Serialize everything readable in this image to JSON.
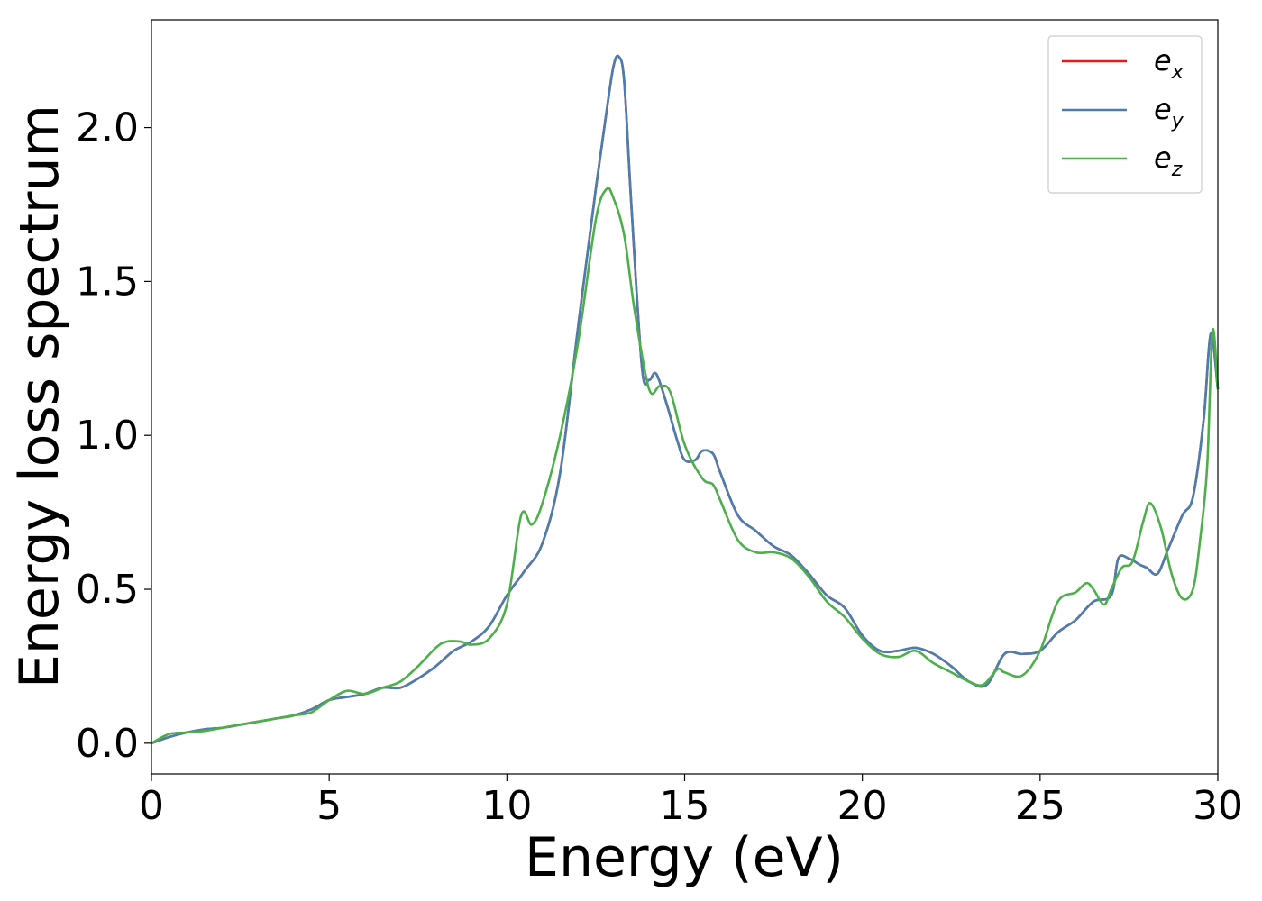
{
  "chart_data": {
    "type": "line",
    "title": "",
    "xlabel": "Energy (eV)",
    "ylabel": "Energy loss spectrum",
    "xlim": [
      0,
      30
    ],
    "ylim": [
      -0.1,
      2.35
    ],
    "xticks": [
      0,
      5,
      10,
      15,
      20,
      25,
      30
    ],
    "xtick_labels": [
      "0",
      "5",
      "10",
      "15",
      "20",
      "25",
      "30"
    ],
    "yticks": [
      0.0,
      0.5,
      1.0,
      1.5,
      2.0
    ],
    "ytick_labels": [
      "0.0",
      "0.5",
      "1.0",
      "1.5",
      "2.0"
    ],
    "grid": false,
    "legend_position": "top-right",
    "series": [
      {
        "name": "e_x",
        "label_base": "e",
        "label_sub": "x",
        "color": "#e41a1c",
        "x": [
          0,
          0.5,
          1,
          1.5,
          2,
          2.5,
          3,
          3.5,
          4,
          4.5,
          5,
          5.5,
          6,
          6.5,
          7,
          7.5,
          8,
          8.5,
          9,
          9.5,
          10,
          10.5,
          11,
          11.5,
          12,
          12.5,
          12.8,
          13,
          13.15,
          13.3,
          13.5,
          13.8,
          14,
          14.2,
          14.5,
          14.8,
          15,
          15.3,
          15.5,
          15.8,
          16,
          16.5,
          17,
          17.5,
          18,
          18.5,
          19,
          19.5,
          20,
          20.5,
          21,
          21.5,
          22,
          22.5,
          23,
          23.5,
          24,
          24.5,
          25,
          25.5,
          26,
          26.5,
          27,
          27.2,
          27.5,
          27.8,
          28,
          28.3,
          28.6,
          29,
          29.3,
          29.6,
          29.8,
          30
        ],
        "y": [
          0.0,
          0.02,
          0.035,
          0.045,
          0.05,
          0.06,
          0.07,
          0.08,
          0.09,
          0.11,
          0.14,
          0.15,
          0.16,
          0.18,
          0.18,
          0.21,
          0.25,
          0.3,
          0.33,
          0.38,
          0.48,
          0.56,
          0.65,
          0.88,
          1.35,
          1.8,
          2.05,
          2.2,
          2.23,
          2.15,
          1.75,
          1.22,
          1.18,
          1.2,
          1.1,
          0.98,
          0.92,
          0.92,
          0.95,
          0.94,
          0.88,
          0.74,
          0.69,
          0.64,
          0.61,
          0.55,
          0.48,
          0.44,
          0.35,
          0.3,
          0.3,
          0.31,
          0.29,
          0.25,
          0.2,
          0.19,
          0.29,
          0.29,
          0.3,
          0.36,
          0.4,
          0.46,
          0.48,
          0.6,
          0.6,
          0.58,
          0.57,
          0.55,
          0.63,
          0.74,
          0.8,
          1.05,
          1.33,
          1.15
        ]
      },
      {
        "name": "e_y",
        "label_base": "e",
        "label_sub": "y",
        "color": "#4a7eb0",
        "x": [
          0,
          0.5,
          1,
          1.5,
          2,
          2.5,
          3,
          3.5,
          4,
          4.5,
          5,
          5.5,
          6,
          6.5,
          7,
          7.5,
          8,
          8.5,
          9,
          9.5,
          10,
          10.5,
          11,
          11.5,
          12,
          12.5,
          12.8,
          13,
          13.15,
          13.3,
          13.5,
          13.8,
          14,
          14.2,
          14.5,
          14.8,
          15,
          15.3,
          15.5,
          15.8,
          16,
          16.5,
          17,
          17.5,
          18,
          18.5,
          19,
          19.5,
          20,
          20.5,
          21,
          21.5,
          22,
          22.5,
          23,
          23.5,
          24,
          24.5,
          25,
          25.5,
          26,
          26.5,
          27,
          27.2,
          27.5,
          27.8,
          28,
          28.3,
          28.6,
          29,
          29.3,
          29.6,
          29.8,
          30
        ],
        "y": [
          0.0,
          0.02,
          0.035,
          0.045,
          0.05,
          0.06,
          0.07,
          0.08,
          0.09,
          0.11,
          0.14,
          0.15,
          0.16,
          0.18,
          0.18,
          0.21,
          0.25,
          0.3,
          0.33,
          0.38,
          0.48,
          0.56,
          0.65,
          0.88,
          1.35,
          1.8,
          2.05,
          2.2,
          2.23,
          2.15,
          1.75,
          1.22,
          1.18,
          1.2,
          1.1,
          0.98,
          0.92,
          0.92,
          0.95,
          0.94,
          0.88,
          0.74,
          0.69,
          0.64,
          0.61,
          0.55,
          0.48,
          0.44,
          0.35,
          0.3,
          0.3,
          0.31,
          0.29,
          0.25,
          0.2,
          0.19,
          0.29,
          0.29,
          0.3,
          0.36,
          0.4,
          0.46,
          0.48,
          0.6,
          0.6,
          0.58,
          0.57,
          0.55,
          0.63,
          0.74,
          0.8,
          1.05,
          1.33,
          1.15
        ]
      },
      {
        "name": "e_z",
        "label_base": "e",
        "label_sub": "z",
        "color": "#4daf4a",
        "x": [
          0,
          0.5,
          1,
          1.5,
          2,
          2.5,
          3,
          3.5,
          4,
          4.5,
          5,
          5.5,
          6,
          6.5,
          7,
          7.5,
          8,
          8.3,
          8.7,
          9,
          9.5,
          10,
          10.4,
          10.7,
          11,
          11.5,
          12,
          12.5,
          12.8,
          13,
          13.3,
          13.6,
          14,
          14.3,
          14.6,
          15,
          15.5,
          15.8,
          16,
          16.5,
          17,
          17.5,
          18,
          18.5,
          19,
          19.5,
          20,
          20.5,
          21,
          21.5,
          22,
          22.5,
          23,
          23.4,
          23.8,
          24,
          24.5,
          25,
          25.5,
          26,
          26.3,
          26.5,
          26.8,
          27,
          27.3,
          27.6,
          27.9,
          28.1,
          28.4,
          28.7,
          29,
          29.3,
          29.5,
          29.7,
          29.85,
          30
        ],
        "y": [
          0.0,
          0.03,
          0.035,
          0.04,
          0.05,
          0.06,
          0.07,
          0.08,
          0.09,
          0.1,
          0.14,
          0.17,
          0.16,
          0.18,
          0.2,
          0.25,
          0.31,
          0.33,
          0.33,
          0.32,
          0.34,
          0.45,
          0.74,
          0.71,
          0.78,
          1.0,
          1.3,
          1.7,
          1.8,
          1.77,
          1.65,
          1.4,
          1.15,
          1.16,
          1.14,
          0.97,
          0.86,
          0.84,
          0.79,
          0.66,
          0.62,
          0.62,
          0.6,
          0.54,
          0.46,
          0.41,
          0.34,
          0.29,
          0.28,
          0.3,
          0.26,
          0.23,
          0.2,
          0.19,
          0.24,
          0.23,
          0.22,
          0.3,
          0.46,
          0.49,
          0.52,
          0.5,
          0.45,
          0.5,
          0.57,
          0.59,
          0.72,
          0.78,
          0.7,
          0.55,
          0.47,
          0.5,
          0.66,
          0.9,
          1.34,
          1.15
        ]
      }
    ]
  }
}
